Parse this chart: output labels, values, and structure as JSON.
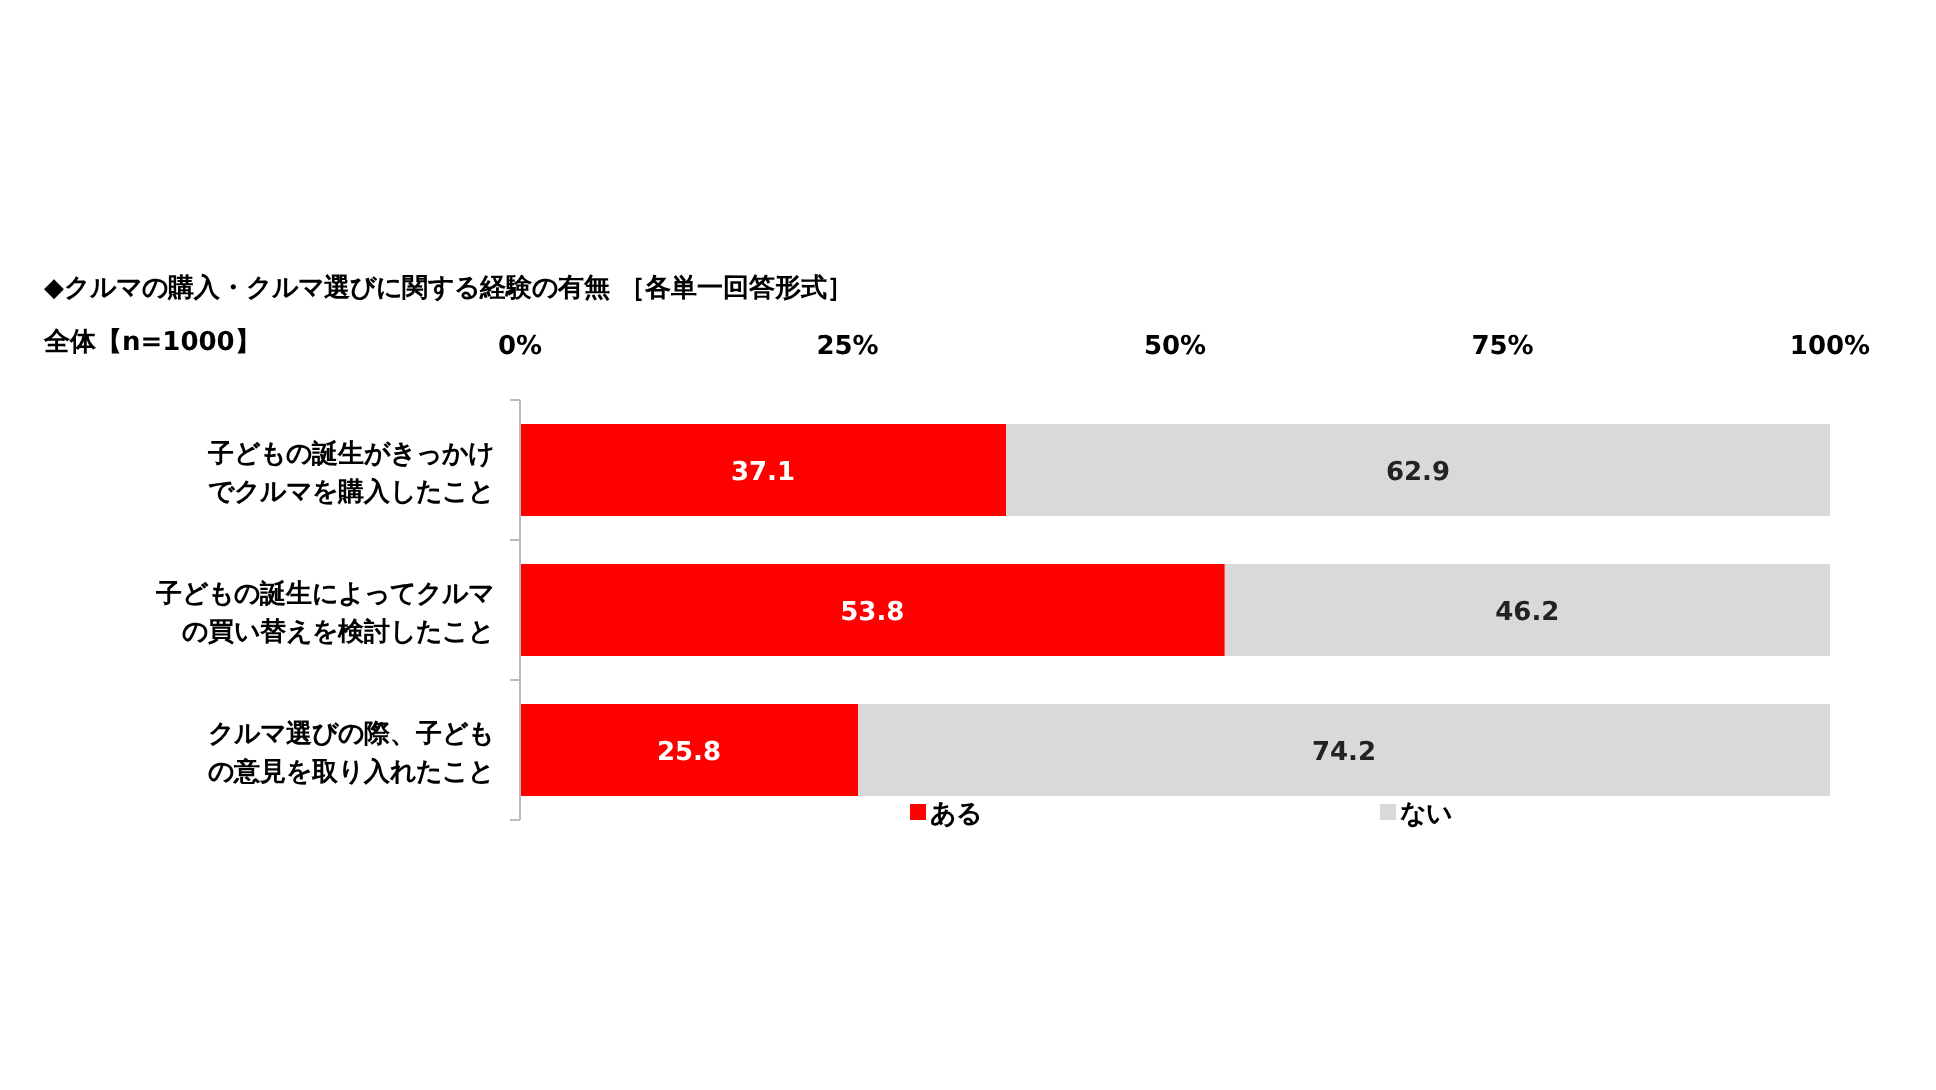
{
  "chart_data": {
    "type": "bar",
    "orientation": "horizontal",
    "stacked": true,
    "title": "◆クルマの購入・クルマ選びに関する経験の有無 ［各単一回答形式］",
    "subtitle": "全体【n=1000】",
    "categories": [
      "子どもの誕生がきっかけでクルマを購入したこと",
      "子どもの誕生によってクルマの買い替えを検討したこと",
      "クルマ選びの際、子どもの意見を取り入れたこと"
    ],
    "series": [
      {
        "name": "ある",
        "color": "#ff0000",
        "values": [
          37.1,
          53.8,
          25.8
        ]
      },
      {
        "name": "ない",
        "color": "#d9d9d9",
        "values": [
          62.9,
          46.2,
          74.2
        ]
      }
    ],
    "xlim": [
      0,
      100
    ],
    "xticks": [
      {
        "value": 0,
        "label": "0%"
      },
      {
        "value": 25,
        "label": "25%"
      },
      {
        "value": 50,
        "label": "50%"
      },
      {
        "value": 75,
        "label": "75%"
      },
      {
        "value": 100,
        "label": "100%"
      }
    ],
    "data_labels": true,
    "legend": "bottom"
  }
}
